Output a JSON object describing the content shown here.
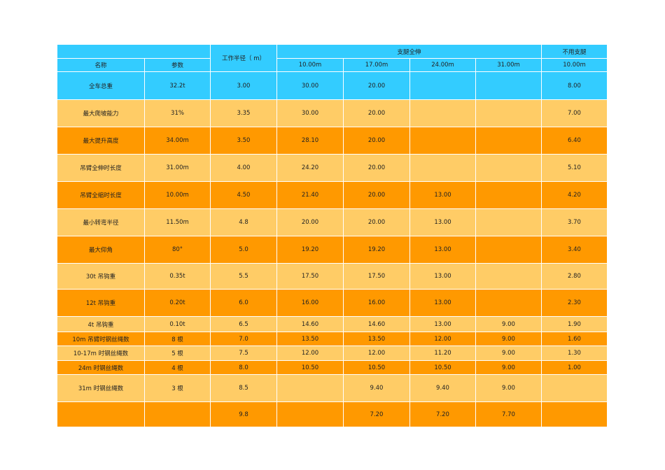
{
  "table": {
    "header": {
      "radius": "工作半径（ m）",
      "outriggers_extended": "支腿全伸",
      "no_outriggers": "不用支腿",
      "columns": [
        "名称",
        "参数",
        "10.00m",
        "17.00m",
        "24.00m",
        "31.00m",
        "10.00m"
      ]
    },
    "rows": [
      [
        "全车总重",
        "32.2t",
        "3.00",
        "30.00",
        "20.00",
        null,
        null,
        "8.00"
      ],
      [
        "最大爬坡能力",
        "31%",
        "3.35",
        "30.00",
        "20.00",
        null,
        null,
        "7.00"
      ],
      [
        "最大提升高度",
        "34.00m",
        "3.50",
        "28.10",
        "20.00",
        null,
        null,
        "6.40"
      ],
      [
        "吊臂全伸时长度",
        "31.00m",
        "4.00",
        "24.20",
        "20.00",
        null,
        null,
        "5.10"
      ],
      [
        "吊臂全缩时长度",
        "10.00m",
        "4.50",
        "21.40",
        "20.00",
        "13.00",
        null,
        "4.20"
      ],
      [
        "最小转弯半径",
        "11.50m",
        "4.8",
        "20.00",
        "20.00",
        "13.00",
        null,
        "3.70"
      ],
      [
        "最大仰角",
        "80°",
        "5.0",
        "19.20",
        "19.20",
        "13.00",
        null,
        "3.40"
      ],
      [
        "30t 吊钩重",
        "0.35t",
        "5.5",
        "17.50",
        "17.50",
        "13.00",
        null,
        "2.80"
      ],
      [
        "12t 吊钩重",
        "0.20t",
        "6.0",
        "16.00",
        "16.00",
        "13.00",
        null,
        "2.30"
      ],
      [
        "4t 吊钩重",
        "0.10t",
        "6.5",
        "14.60",
        "14.60",
        "13.00",
        "9.00",
        "1.90"
      ],
      [
        "10m 吊臂时钢丝绳数",
        "8 根",
        "7.0",
        "13.50",
        "13.50",
        "12.00",
        "9.00",
        "1.60"
      ],
      [
        "10-17m 时钢丝绳数",
        "5 根",
        "7.5",
        "12.00",
        "12.00",
        "11.20",
        "9.00",
        "1.30"
      ],
      [
        "24m 时钢丝绳数",
        "4 根",
        "8.0",
        "10.50",
        "10.50",
        "10.50",
        "9.00",
        "1.00"
      ],
      [
        "31m 时钢丝绳数",
        "3 根",
        "8.5",
        null,
        "9.40",
        "9.40",
        "9.00",
        null
      ],
      [
        null,
        null,
        "9.8",
        null,
        "7.20",
        "7.20",
        "7.70",
        null
      ]
    ]
  }
}
